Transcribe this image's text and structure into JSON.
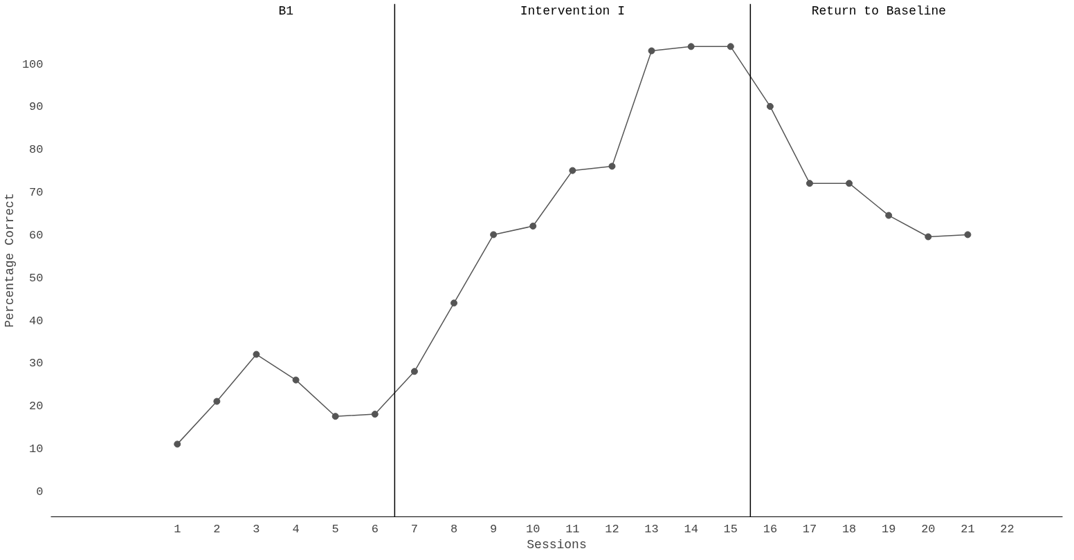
{
  "chart_data": {
    "type": "line",
    "xlabel": "Sessions",
    "ylabel": "Percentage Correct",
    "x": [
      1,
      2,
      3,
      4,
      5,
      6,
      7,
      8,
      9,
      10,
      11,
      12,
      13,
      14,
      15,
      16,
      17,
      18,
      19,
      20,
      21
    ],
    "series": [
      {
        "color": "#555555",
        "values": [
          11,
          21,
          32,
          26,
          17.5,
          18,
          28,
          44,
          60,
          62,
          75,
          76,
          103,
          104,
          104,
          90,
          72,
          72,
          64.5,
          59.5,
          60
        ]
      }
    ],
    "xlim": [
      -2.2,
      23.4
    ],
    "xticks": [
      1,
      2,
      3,
      4,
      5,
      6,
      7,
      8,
      9,
      10,
      11,
      12,
      13,
      14,
      15,
      16,
      17,
      18,
      19,
      20,
      21,
      22
    ],
    "ylim": [
      -6,
      114
    ],
    "yticks": [
      0,
      10,
      20,
      30,
      40,
      50,
      60,
      70,
      80,
      90,
      100
    ],
    "ref_lines": [
      {
        "axis": "x",
        "value": 6.5,
        "color": "#000000"
      },
      {
        "axis": "x",
        "value": 15.5,
        "color": "#000000"
      }
    ],
    "annotations": [
      "B1",
      "Intervention I",
      "Return to Baseline"
    ],
    "marker": "circle",
    "line_style": "solid",
    "grid": false
  }
}
